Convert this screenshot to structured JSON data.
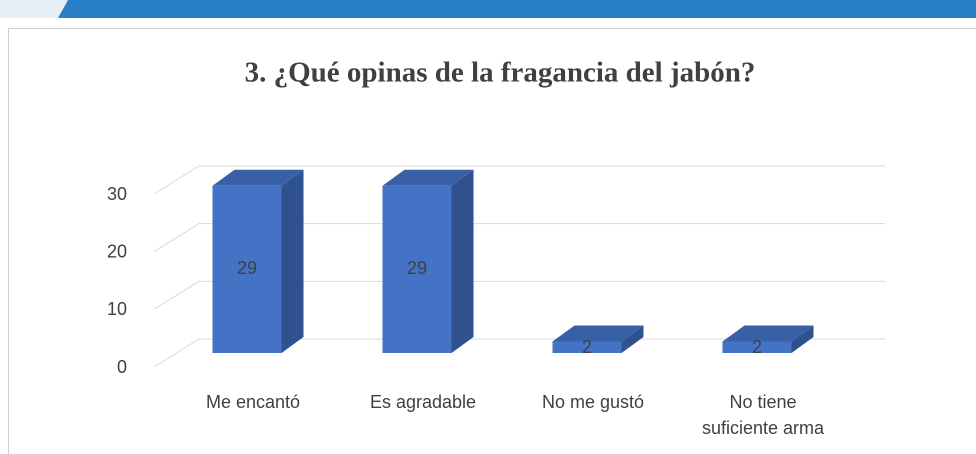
{
  "chart_data": {
    "type": "bar3d",
    "title": "3. ¿Qué opinas de la fragancia del jabón?",
    "categories": [
      "Me encantó",
      "Es agradable",
      "No me gustó",
      "No tiene suficiente arma"
    ],
    "values": [
      29,
      29,
      2,
      2
    ],
    "color": "#4472c4",
    "ylim": [
      0,
      30
    ],
    "yticks": [
      0,
      10,
      20,
      30
    ],
    "grid": true
  }
}
